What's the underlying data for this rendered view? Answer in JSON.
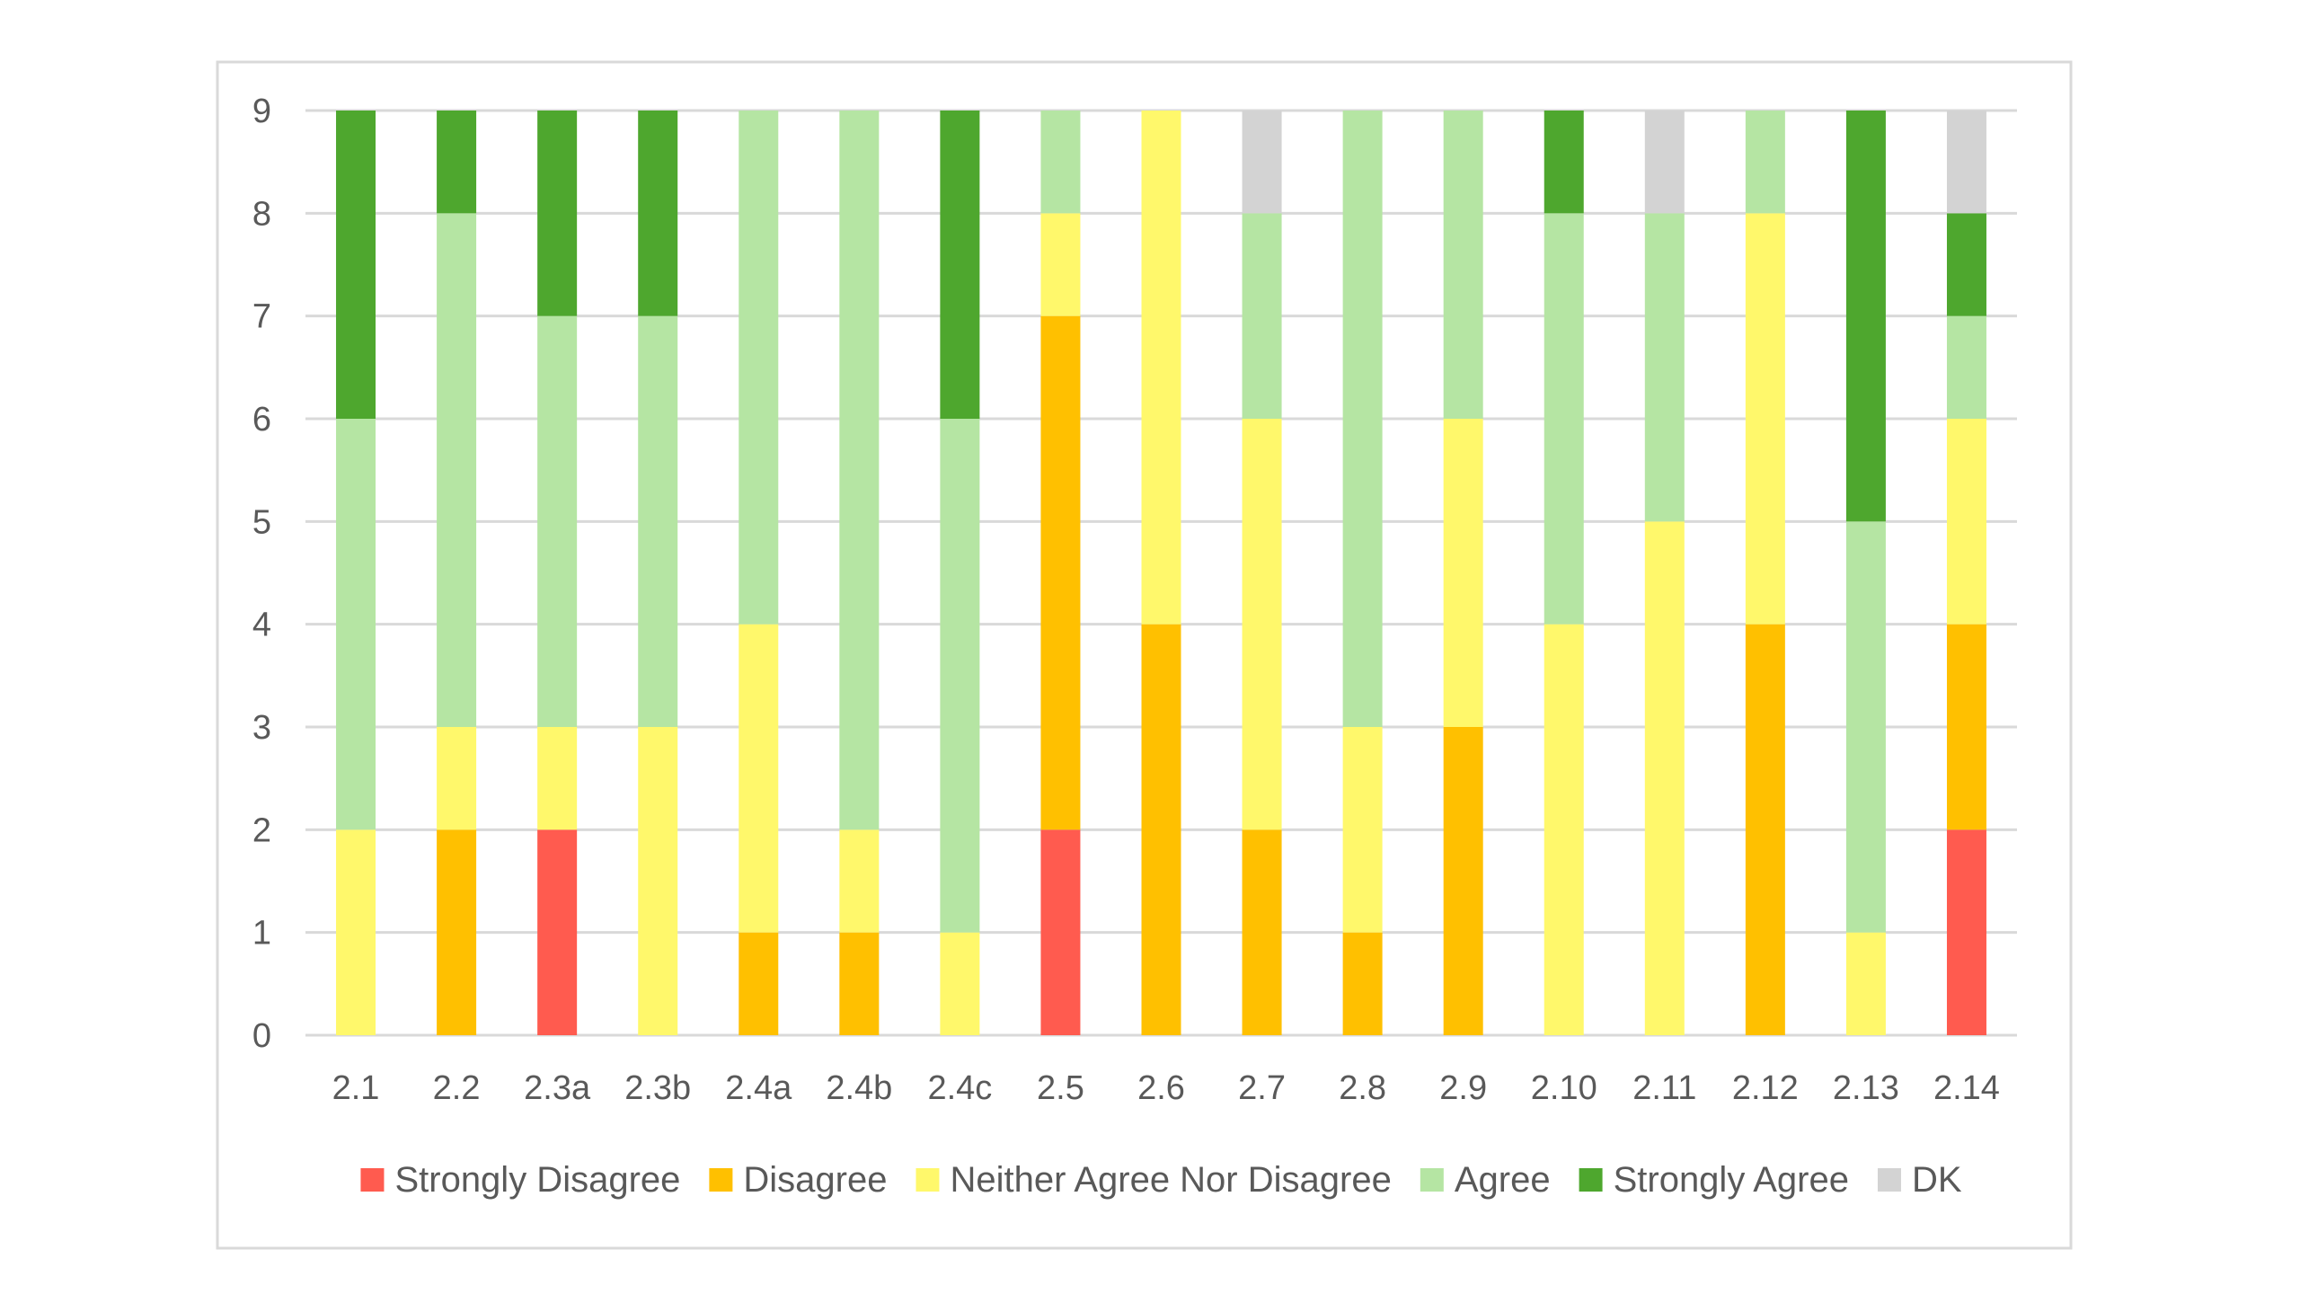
{
  "chart_data": {
    "type": "bar",
    "stacked": true,
    "title": "",
    "xlabel": "",
    "ylabel": "",
    "ylim": [
      0,
      9
    ],
    "yticks": [
      0,
      1,
      2,
      3,
      4,
      5,
      6,
      7,
      8,
      9
    ],
    "grid": true,
    "legend_position": "bottom",
    "categories": [
      "2.1",
      "2.2",
      "2.3a",
      "2.3b",
      "2.4a",
      "2.4b",
      "2.4c",
      "2.5",
      "2.6",
      "2.7",
      "2.8",
      "2.9",
      "2.10",
      "2.11",
      "2.12",
      "2.13",
      "2.14"
    ],
    "series": [
      {
        "name": "Strongly Disagree",
        "color": "#FF5B4F",
        "values": [
          0,
          0,
          2,
          0,
          0,
          0,
          0,
          2,
          0,
          0,
          0,
          0,
          0,
          0,
          0,
          0,
          2
        ]
      },
      {
        "name": "Disagree",
        "color": "#FFC000",
        "values": [
          0,
          2,
          0,
          0,
          1,
          1,
          0,
          5,
          4,
          2,
          1,
          3,
          0,
          0,
          4,
          0,
          2
        ]
      },
      {
        "name": "Neither Agree Nor Disagree",
        "color": "#FFF86B",
        "values": [
          2,
          1,
          1,
          3,
          3,
          1,
          1,
          1,
          5,
          4,
          2,
          3,
          4,
          5,
          4,
          1,
          2
        ]
      },
      {
        "name": "Agree",
        "color": "#B5E5A3",
        "values": [
          4,
          5,
          4,
          4,
          5,
          7,
          5,
          1,
          0,
          2,
          6,
          3,
          4,
          3,
          1,
          4,
          1
        ]
      },
      {
        "name": "Strongly Agree",
        "color": "#4EA72E",
        "values": [
          3,
          1,
          2,
          2,
          0,
          0,
          3,
          0,
          0,
          0,
          0,
          0,
          1,
          0,
          0,
          4,
          1
        ]
      },
      {
        "name": "DK",
        "color": "#D3D3D3",
        "values": [
          0,
          0,
          0,
          0,
          0,
          0,
          0,
          0,
          0,
          1,
          0,
          0,
          0,
          1,
          0,
          0,
          1
        ]
      }
    ]
  }
}
